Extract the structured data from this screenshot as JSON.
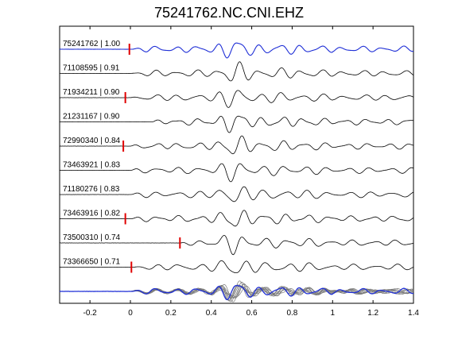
{
  "chart_data": {
    "type": "line",
    "title": "75241762.NC.CNI.EHZ",
    "xlim": [
      -0.35,
      1.4
    ],
    "xticks": [
      "-0.2",
      "0",
      "0.2",
      "0.4",
      "0.6",
      "0.8",
      "1",
      "1.2",
      "1.4"
    ],
    "xtick_values": [
      -0.2,
      0,
      0.2,
      0.4,
      0.6,
      0.8,
      1.0,
      1.2,
      1.4
    ],
    "grid": false,
    "colors": {
      "reference": "#1f2fd6",
      "trace": "#000000",
      "pick": "#e00000",
      "overlay": "#7a7a7a"
    },
    "traces": [
      {
        "label": "75241762 | 1.00",
        "event_id": "75241762",
        "correlation": 1.0,
        "pick_time": -0.005,
        "onset": 0.0
      },
      {
        "label": "71108595 | 0.91",
        "event_id": "71108595",
        "correlation": 0.91,
        "pick_time": null,
        "onset": 0.0
      },
      {
        "label": "71934211 | 0.90",
        "event_id": "71934211",
        "correlation": 0.9,
        "pick_time": -0.025,
        "onset": 0.0
      },
      {
        "label": "21231167 | 0.90",
        "event_id": "21231167",
        "correlation": 0.9,
        "pick_time": null,
        "onset": 0.1
      },
      {
        "label": "72990340 | 0.84",
        "event_id": "72990340",
        "correlation": 0.84,
        "pick_time": -0.035,
        "onset": 0.0
      },
      {
        "label": "73463921 | 0.83",
        "event_id": "73463921",
        "correlation": 0.83,
        "pick_time": null,
        "onset": 0.0
      },
      {
        "label": "71180276 | 0.83",
        "event_id": "71180276",
        "correlation": 0.83,
        "pick_time": null,
        "onset": 0.0
      },
      {
        "label": "73463916 | 0.82",
        "event_id": "73463916",
        "correlation": 0.82,
        "pick_time": -0.025,
        "onset": 0.0
      },
      {
        "label": "73500310 | 0.74",
        "event_id": "73500310",
        "correlation": 0.74,
        "pick_time": 0.245,
        "onset": 0.25
      },
      {
        "label": "73366650 | 0.71",
        "event_id": "73366650",
        "correlation": 0.71,
        "pick_time": 0.005,
        "onset": 0.02
      }
    ],
    "stack": {
      "overlay": true
    }
  }
}
